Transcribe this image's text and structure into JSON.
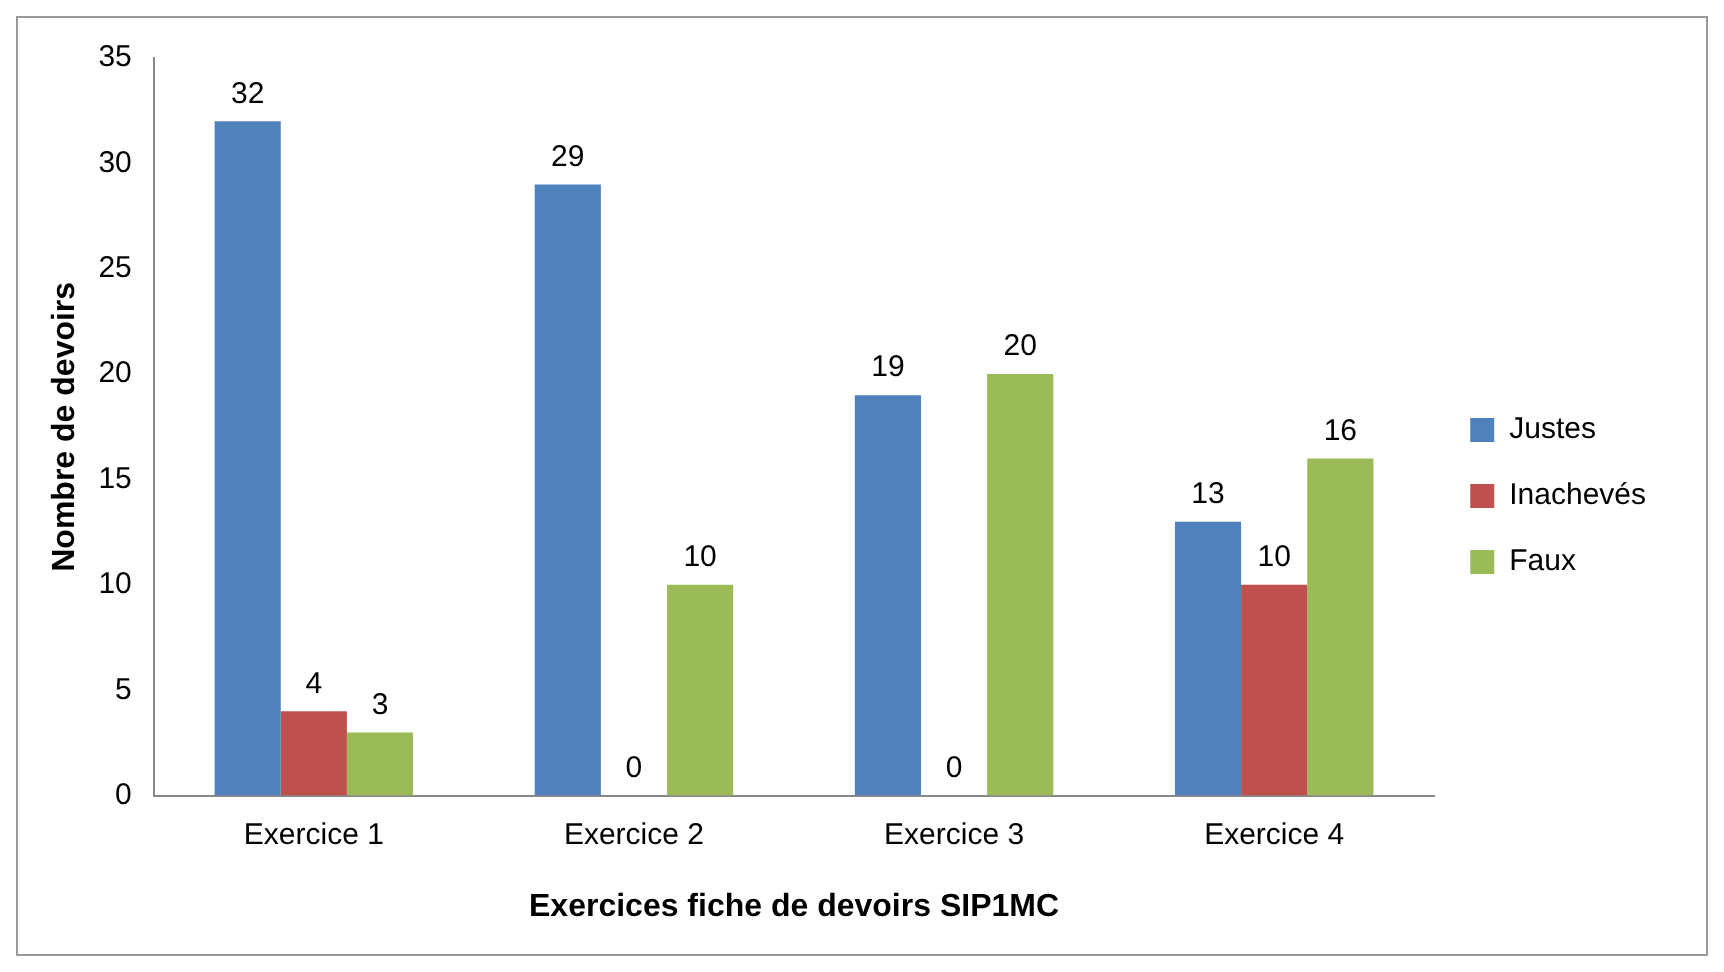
{
  "chart_data": {
    "type": "bar",
    "xlabel": "Exercices fiche de devoirs SIP1MC",
    "ylabel": "Nombre de devoirs",
    "categories": [
      "Exercice 1",
      "Exercice 2",
      "Exercice 3",
      "Exercice 4"
    ],
    "series": [
      {
        "name": "Justes",
        "color": "#4f81bd",
        "values": [
          32,
          29,
          19,
          13
        ]
      },
      {
        "name": "Inachevés",
        "color": "#c0504d",
        "values": [
          4,
          0,
          0,
          10
        ]
      },
      {
        "name": "Faux",
        "color": "#9bbb59",
        "values": [
          3,
          10,
          20,
          16
        ]
      }
    ],
    "ylim": [
      0,
      35
    ],
    "yticks": [
      0,
      5,
      10,
      15,
      20,
      25,
      30,
      35
    ],
    "grid": false,
    "legend": "right",
    "data_labels": true
  }
}
